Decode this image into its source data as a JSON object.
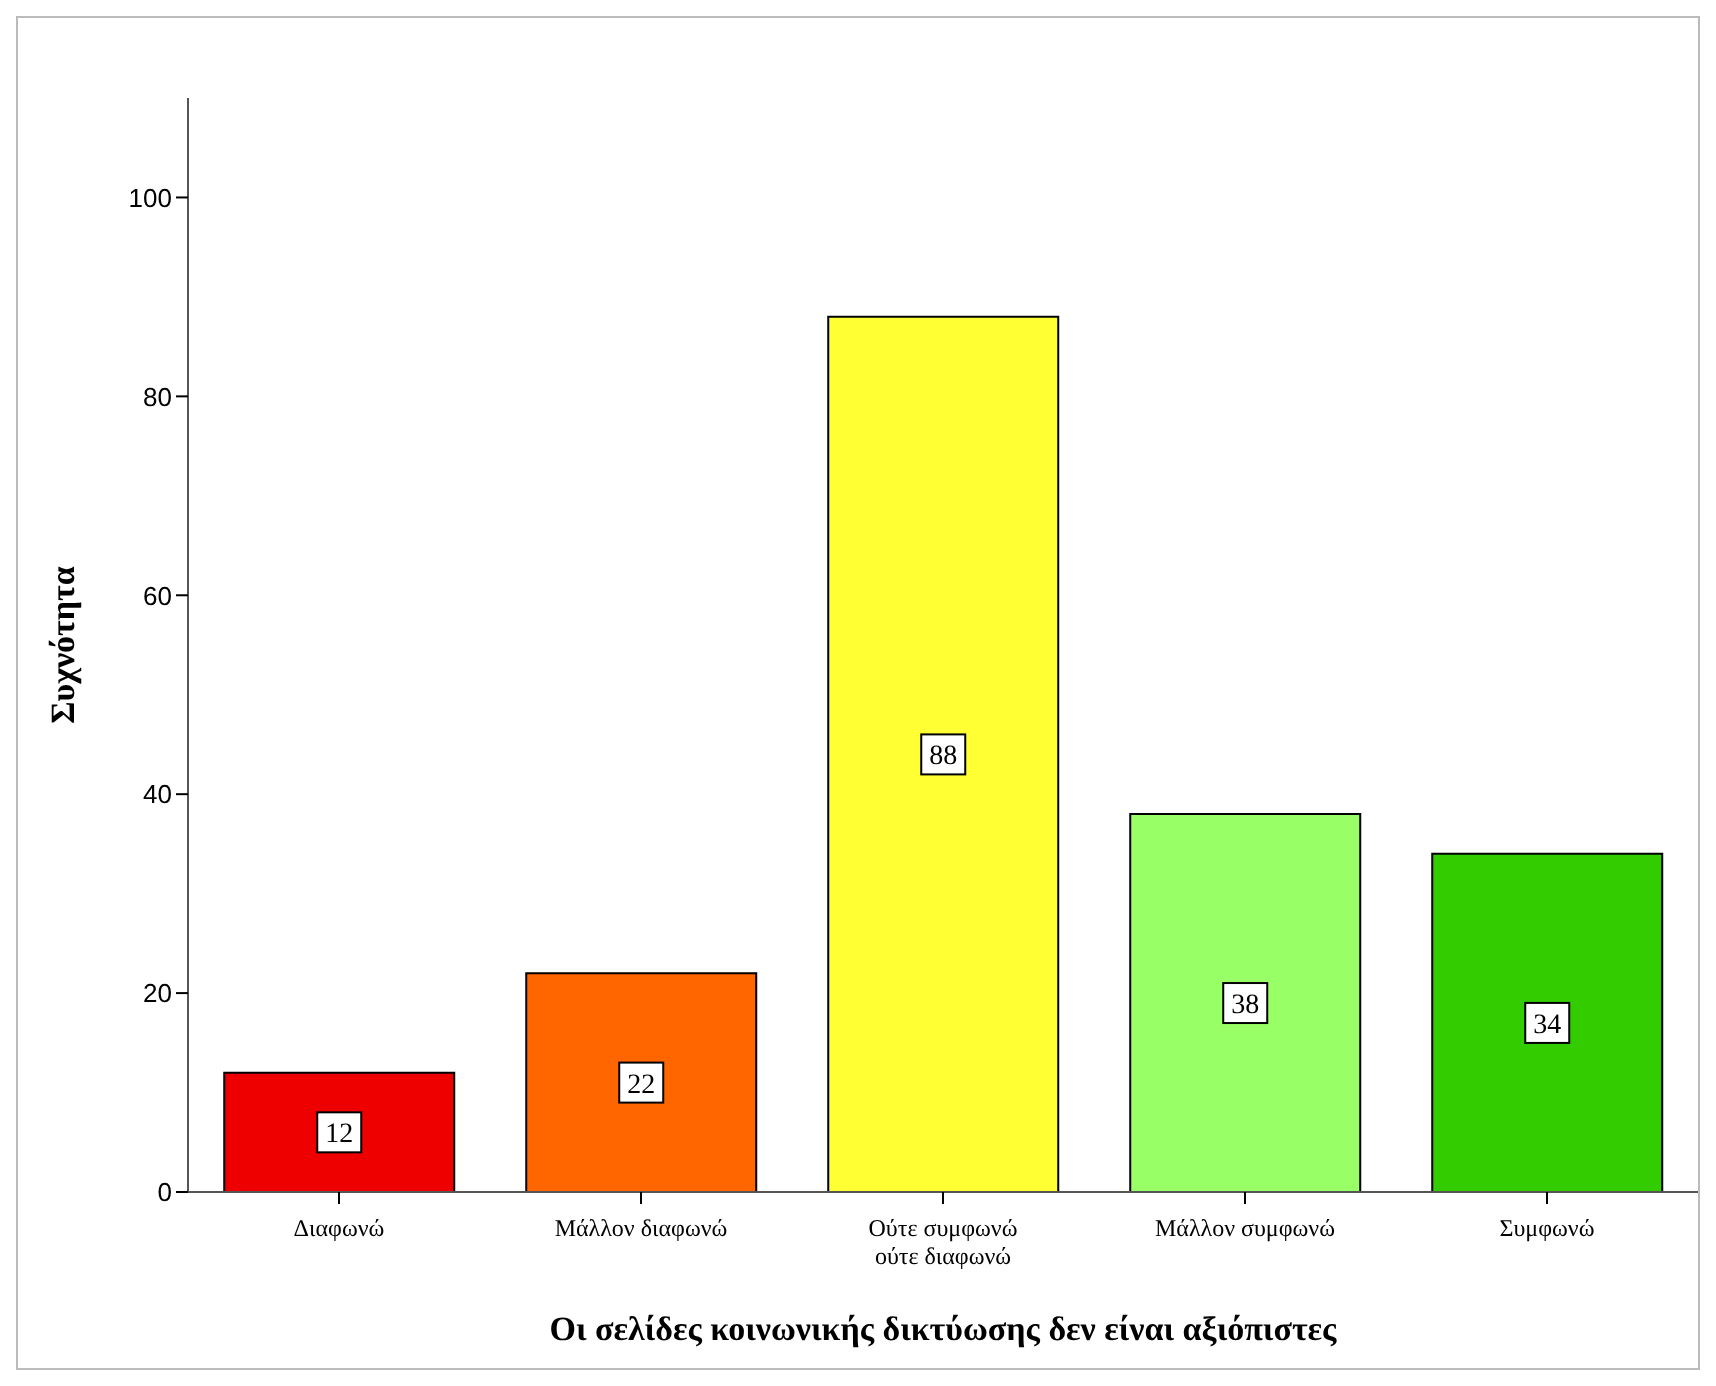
{
  "chart_data": {
    "type": "bar",
    "xlabel": "Οι σελίδες κοινωνικής δικτύωσης δεν είναι αξιόπιστες",
    "ylabel": "Συχνότητα",
    "categories": [
      "Διαφωνώ",
      "Μάλλον διαφωνώ",
      "Ούτε συμφωνώ ούτε διαφωνώ",
      "Μάλλον συμφωνώ",
      "Συμφωνώ"
    ],
    "values": [
      12,
      22,
      88,
      38,
      34
    ],
    "colors": [
      "#ee0000",
      "#ff6600",
      "#ffff33",
      "#99ff66",
      "#33cc00"
    ],
    "ylim": [
      0,
      110
    ],
    "yticks": [
      0,
      20,
      40,
      60,
      80,
      100
    ],
    "data_labels": true
  }
}
